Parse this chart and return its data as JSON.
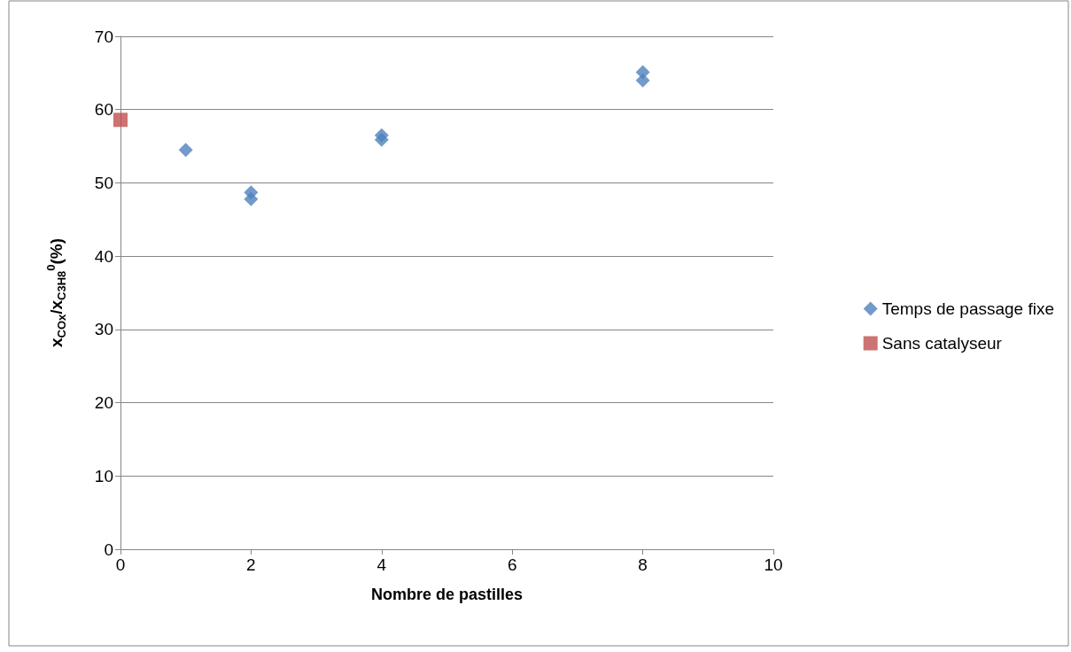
{
  "chart_data": {
    "type": "scatter",
    "xlabel": "Nombre de pastilles",
    "ylabel": "x$_{COx}$/x$_{C3H8}$$^{0}$(%)",
    "series": [
      {
        "name": "Temps de passage fixe",
        "color": "#4f81bd",
        "marker": "diamond",
        "x": [
          1,
          2,
          2,
          4,
          4,
          8,
          8
        ],
        "values": [
          54.5,
          48.7,
          47.8,
          56.5,
          55.9,
          65.1,
          64.0
        ]
      },
      {
        "name": "Sans catalyseur",
        "color": "#c0504d",
        "marker": "square",
        "x": [
          0
        ],
        "values": [
          58.6
        ]
      }
    ],
    "xlim": [
      0,
      10
    ],
    "xticks": [
      0,
      2,
      4,
      6,
      8,
      10
    ],
    "ylim": [
      0,
      70
    ],
    "yticks": [
      0,
      10,
      20,
      30,
      40,
      50,
      60,
      70
    ],
    "grid": "y",
    "legend": "right"
  }
}
